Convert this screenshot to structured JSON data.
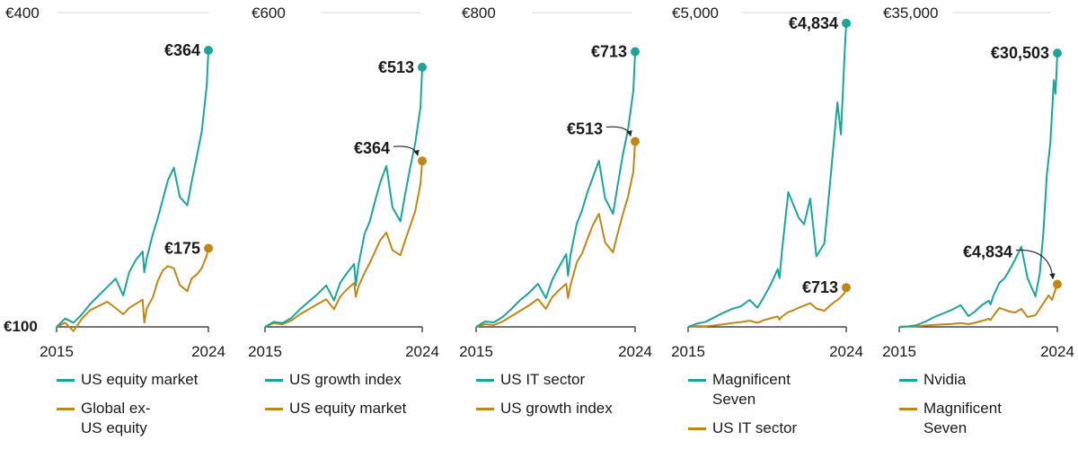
{
  "colors": {
    "teal": "#1ca49b",
    "gold": "#c08718",
    "axis": "#222222",
    "grid": "#d6d6d6",
    "text": "#1a1a1a"
  },
  "chart_data": [
    {
      "type": "line",
      "panel": "US equity market vs Global ex-US equity",
      "x_range": [
        2015,
        2024
      ],
      "x_ticks": [
        "2015",
        "2024"
      ],
      "ylim": [
        100,
        400
      ],
      "y_top_label": "€400",
      "y_bottom_label": "€100",
      "series": [
        {
          "name": "US equity market",
          "color": "teal",
          "end_value": 364,
          "end_label": "€364",
          "x": [
            2015.0,
            2015.5,
            2016.0,
            2016.5,
            2017.0,
            2017.5,
            2018.0,
            2018.5,
            2018.95,
            2019.3,
            2019.7,
            2020.1,
            2020.2,
            2020.35,
            2020.7,
            2021.0,
            2021.3,
            2021.6,
            2021.95,
            2022.3,
            2022.75,
            2023.0,
            2023.3,
            2023.6,
            2023.9,
            2024.0
          ],
          "values": [
            100,
            108,
            104,
            112,
            122,
            130,
            138,
            146,
            130,
            152,
            164,
            172,
            152,
            166,
            188,
            204,
            222,
            240,
            252,
            224,
            216,
            238,
            262,
            286,
            330,
            364
          ]
        },
        {
          "name": "Global ex-US equity",
          "color": "gold",
          "end_value": 175,
          "end_label": "€175",
          "x": [
            2015.0,
            2015.5,
            2016.0,
            2016.5,
            2017.0,
            2017.5,
            2018.0,
            2018.5,
            2018.95,
            2019.3,
            2019.7,
            2020.1,
            2020.2,
            2020.35,
            2020.7,
            2021.0,
            2021.3,
            2021.6,
            2021.95,
            2022.3,
            2022.75,
            2023.0,
            2023.3,
            2023.6,
            2023.9,
            2024.0
          ],
          "values": [
            100,
            104,
            96,
            108,
            116,
            120,
            124,
            118,
            112,
            118,
            122,
            126,
            104,
            118,
            128,
            144,
            154,
            158,
            156,
            140,
            134,
            146,
            150,
            156,
            168,
            175
          ]
        }
      ],
      "annotations": [
        {
          "series": 0,
          "text": "€364",
          "arrow": false
        },
        {
          "series": 1,
          "text": "€175",
          "arrow": false
        }
      ],
      "legend": [
        "US equity market",
        "Global ex-US equity"
      ]
    },
    {
      "type": "line",
      "panel": "US growth index vs US equity market",
      "x_range": [
        2015,
        2024
      ],
      "x_ticks": [
        "2015",
        "2024"
      ],
      "ylim": [
        100,
        600
      ],
      "y_top_label": "€600",
      "series": [
        {
          "name": "US growth index",
          "color": "teal",
          "end_value": 513,
          "end_label": "€513",
          "x": [
            2015.0,
            2015.5,
            2016.0,
            2016.5,
            2017.0,
            2017.5,
            2018.0,
            2018.5,
            2018.95,
            2019.3,
            2019.7,
            2020.1,
            2020.2,
            2020.35,
            2020.7,
            2021.0,
            2021.3,
            2021.6,
            2021.95,
            2022.3,
            2022.75,
            2023.0,
            2023.3,
            2023.6,
            2023.9,
            2024.0
          ],
          "values": [
            100,
            108,
            106,
            114,
            128,
            140,
            152,
            166,
            142,
            170,
            186,
            200,
            166,
            198,
            248,
            268,
            300,
            330,
            356,
            290,
            268,
            308,
            352,
            392,
            450,
            513
          ]
        },
        {
          "name": "US equity market",
          "color": "gold",
          "end_value": 364,
          "end_label": "€364",
          "x": [
            2015.0,
            2015.5,
            2016.0,
            2016.5,
            2017.0,
            2017.5,
            2018.0,
            2018.5,
            2018.95,
            2019.3,
            2019.7,
            2020.1,
            2020.2,
            2020.35,
            2020.7,
            2021.0,
            2021.3,
            2021.6,
            2021.95,
            2022.3,
            2022.75,
            2023.0,
            2023.3,
            2023.6,
            2023.9,
            2024.0
          ],
          "values": [
            100,
            106,
            104,
            110,
            120,
            128,
            136,
            144,
            128,
            148,
            160,
            170,
            148,
            164,
            186,
            202,
            220,
            238,
            250,
            222,
            214,
            236,
            260,
            284,
            328,
            364
          ]
        }
      ],
      "annotations": [
        {
          "series": 0,
          "text": "€513",
          "arrow": false
        },
        {
          "series": 1,
          "text": "€364",
          "arrow": true
        }
      ],
      "legend": [
        "US growth index",
        "US equity market"
      ]
    },
    {
      "type": "line",
      "panel": "US IT sector vs US growth index",
      "x_range": [
        2015,
        2024
      ],
      "x_ticks": [
        "2015",
        "2024"
      ],
      "ylim": [
        100,
        800
      ],
      "y_top_label": "€800",
      "series": [
        {
          "name": "US IT sector",
          "color": "teal",
          "end_value": 713,
          "end_label": "€713",
          "x": [
            2015.0,
            2015.5,
            2016.0,
            2016.5,
            2017.0,
            2017.5,
            2018.0,
            2018.5,
            2018.95,
            2019.3,
            2019.7,
            2020.1,
            2020.2,
            2020.35,
            2020.7,
            2021.0,
            2021.3,
            2021.6,
            2021.95,
            2022.3,
            2022.75,
            2023.0,
            2023.3,
            2023.6,
            2023.9,
            2024.0
          ],
          "values": [
            100,
            112,
            110,
            122,
            140,
            160,
            176,
            196,
            164,
            204,
            234,
            262,
            214,
            262,
            330,
            360,
            400,
            432,
            470,
            386,
            352,
            412,
            482,
            540,
            626,
            713
          ]
        },
        {
          "name": "US growth index",
          "color": "gold",
          "end_value": 513,
          "end_label": "€513",
          "x": [
            2015.0,
            2015.5,
            2016.0,
            2016.5,
            2017.0,
            2017.5,
            2018.0,
            2018.5,
            2018.95,
            2019.3,
            2019.7,
            2020.1,
            2020.2,
            2020.35,
            2020.7,
            2021.0,
            2021.3,
            2021.6,
            2021.95,
            2022.3,
            2022.75,
            2023.0,
            2023.3,
            2023.6,
            2023.9,
            2024.0
          ],
          "values": [
            100,
            106,
            104,
            112,
            124,
            136,
            148,
            162,
            140,
            166,
            182,
            196,
            164,
            194,
            244,
            264,
            296,
            326,
            352,
            288,
            266,
            306,
            350,
            390,
            446,
            513
          ]
        }
      ],
      "annotations": [
        {
          "series": 0,
          "text": "€713",
          "arrow": false
        },
        {
          "series": 1,
          "text": "€513",
          "arrow": true
        }
      ],
      "legend": [
        "US IT sector",
        "US growth index"
      ]
    },
    {
      "type": "line",
      "panel": "Magnificent Seven vs US IT sector",
      "x_range": [
        2015,
        2024
      ],
      "x_ticks": [
        "2015",
        "2024"
      ],
      "ylim": [
        100,
        5000
      ],
      "y_top_label": "€5,000",
      "series": [
        {
          "name": "Magnificent Seven",
          "color": "teal",
          "end_value": 4834,
          "end_label": "€4,834",
          "x": [
            2015.0,
            2015.5,
            2016.0,
            2016.5,
            2017.0,
            2017.5,
            2018.0,
            2018.5,
            2018.95,
            2019.3,
            2019.7,
            2020.1,
            2020.2,
            2020.35,
            2020.7,
            2021.0,
            2021.3,
            2021.6,
            2021.95,
            2022.3,
            2022.75,
            2023.0,
            2023.3,
            2023.5,
            2023.7,
            2023.9,
            2024.0
          ],
          "values": [
            100,
            150,
            180,
            250,
            320,
            380,
            420,
            520,
            400,
            560,
            760,
            1000,
            860,
            1300,
            2200,
            2000,
            1800,
            1700,
            2100,
            1200,
            1400,
            2100,
            3000,
            3600,
            3100,
            4300,
            4834
          ]
        },
        {
          "name": "US IT sector",
          "color": "gold",
          "end_value": 713,
          "end_label": "€713",
          "x": [
            2015.0,
            2015.5,
            2016.0,
            2016.5,
            2017.0,
            2017.5,
            2018.0,
            2018.5,
            2018.95,
            2019.3,
            2019.7,
            2020.1,
            2020.2,
            2020.35,
            2020.7,
            2021.0,
            2021.3,
            2021.6,
            2021.95,
            2022.3,
            2022.75,
            2023.0,
            2023.3,
            2023.6,
            2023.9,
            2024.0
          ],
          "values": [
            100,
            112,
            110,
            122,
            140,
            160,
            176,
            196,
            164,
            204,
            234,
            262,
            214,
            262,
            330,
            360,
            400,
            432,
            470,
            386,
            352,
            412,
            482,
            540,
            626,
            713
          ]
        }
      ],
      "annotations": [
        {
          "series": 0,
          "text": "€4,834",
          "arrow": false
        },
        {
          "series": 1,
          "text": "€713",
          "arrow": false
        }
      ],
      "legend": [
        "Magnificent Seven",
        "US IT sector"
      ]
    },
    {
      "type": "line",
      "panel": "Nvidia vs Magnificent Seven",
      "x_range": [
        2015,
        2024
      ],
      "x_ticks": [
        "2015",
        "2024"
      ],
      "ylim": [
        100,
        35000
      ],
      "y_top_label": "€35,000",
      "series": [
        {
          "name": "Nvidia",
          "color": "teal",
          "end_value": 30503,
          "end_label": "€30,503",
          "x": [
            2015.0,
            2015.5,
            2016.0,
            2016.5,
            2017.0,
            2017.5,
            2018.0,
            2018.5,
            2018.95,
            2019.3,
            2019.7,
            2020.1,
            2020.2,
            2020.35,
            2020.7,
            2021.0,
            2021.3,
            2021.6,
            2021.95,
            2022.3,
            2022.75,
            2023.0,
            2023.2,
            2023.4,
            2023.6,
            2023.8,
            2023.9,
            2024.0
          ],
          "values": [
            100,
            150,
            300,
            700,
            1200,
            1600,
            2000,
            2500,
            1300,
            1800,
            2500,
            3000,
            2600,
            3500,
            5000,
            5500,
            6500,
            7600,
            9000,
            5500,
            3500,
            6000,
            10500,
            17000,
            20500,
            27500,
            26000,
            30503
          ]
        },
        {
          "name": "Magnificent Seven",
          "color": "gold",
          "end_value": 4834,
          "end_label": "€4,834",
          "x": [
            2015.0,
            2015.5,
            2016.0,
            2016.5,
            2017.0,
            2017.5,
            2018.0,
            2018.5,
            2018.95,
            2019.3,
            2019.7,
            2020.1,
            2020.2,
            2020.35,
            2020.7,
            2021.0,
            2021.3,
            2021.6,
            2021.95,
            2022.3,
            2022.75,
            2023.0,
            2023.3,
            2023.5,
            2023.7,
            2023.9,
            2024.0
          ],
          "values": [
            100,
            150,
            180,
            250,
            320,
            380,
            420,
            520,
            400,
            560,
            760,
            1000,
            860,
            1300,
            2200,
            2000,
            1800,
            1700,
            2100,
            1200,
            1400,
            2100,
            3000,
            3600,
            3100,
            4300,
            4834
          ]
        }
      ],
      "annotations": [
        {
          "series": 0,
          "text": "€30,503",
          "arrow": false
        },
        {
          "series": 1,
          "text": "€4,834",
          "arrow": true
        }
      ],
      "legend": [
        "Nvidia",
        "Magnificent Seven"
      ]
    }
  ]
}
